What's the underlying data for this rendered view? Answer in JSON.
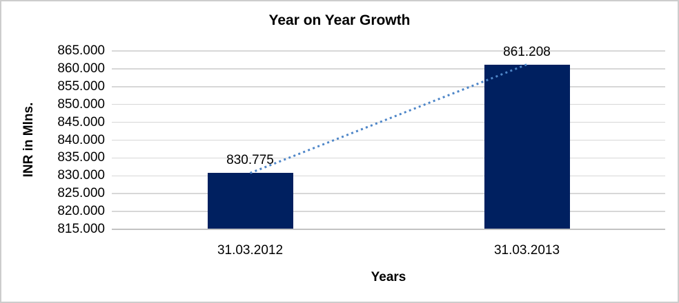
{
  "chart_data": {
    "type": "bar",
    "title": "Year on Year Growth",
    "xlabel": "Years",
    "ylabel": "INR in Mlns.",
    "categories": [
      "31.03.2012",
      "31.03.2013"
    ],
    "values": [
      830.775,
      861.208
    ],
    "data_labels": [
      "830.775",
      "861.208"
    ],
    "ylim": [
      815,
      865
    ],
    "ytick_step": 5,
    "ytick_labels": [
      "815.000",
      "820.000",
      "825.000",
      "830.000",
      "835.000",
      "840.000",
      "845.000",
      "850.000",
      "855.000",
      "860.000",
      "865.000"
    ],
    "grid": true,
    "legend": "none",
    "trendline": {
      "type": "linear",
      "style": "dotted",
      "from_category": "31.03.2012",
      "to_category": "31.03.2013"
    },
    "colors": {
      "bar": "#002060",
      "trendline": "#4e86c8",
      "gridline": "#d7d7d7",
      "axis_line": "#c3c3c3",
      "frame_border": "#cdcdcd",
      "text": "#000000",
      "background": "#ffffff"
    }
  }
}
